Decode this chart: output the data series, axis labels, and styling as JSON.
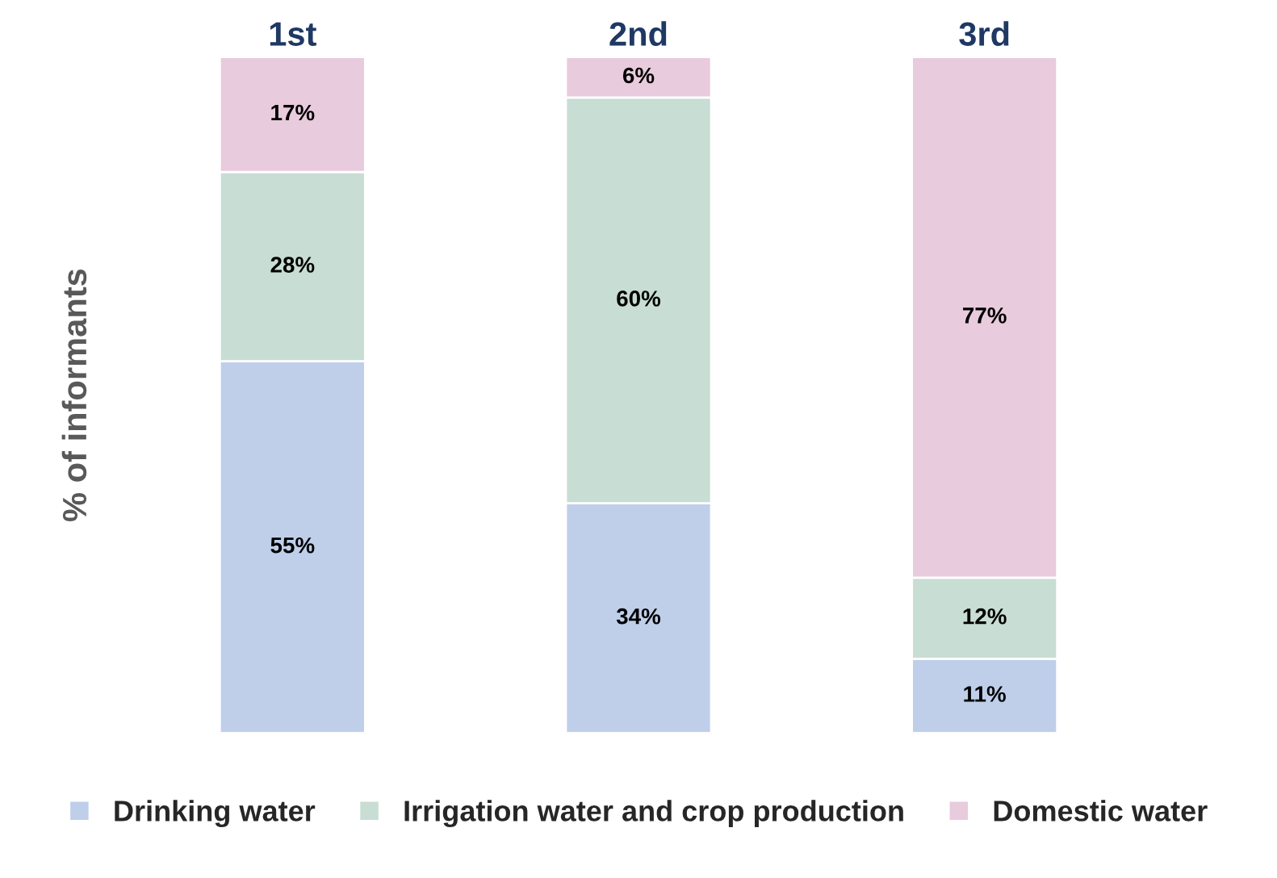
{
  "chart_data": {
    "type": "bar",
    "stacked": true,
    "ylabel": "% of informants",
    "categories": [
      "1st",
      "2nd",
      "3rd"
    ],
    "series": [
      {
        "name": "Drinking water",
        "color": "#bfcfea",
        "values": [
          55,
          34,
          11
        ],
        "value_labels": [
          "55%",
          "34%",
          "11%"
        ]
      },
      {
        "name": "Irrigation water and crop production",
        "color": "#c8ddd3",
        "values": [
          28,
          60,
          12
        ],
        "value_labels": [
          "28%",
          "60%",
          "12%"
        ]
      },
      {
        "name": "Domestic water",
        "color": "#e8cbdc",
        "values": [
          17,
          6,
          77
        ],
        "value_labels": [
          "17%",
          "6%",
          "77%"
        ]
      }
    ],
    "legend": "bottom",
    "grid": false
  }
}
